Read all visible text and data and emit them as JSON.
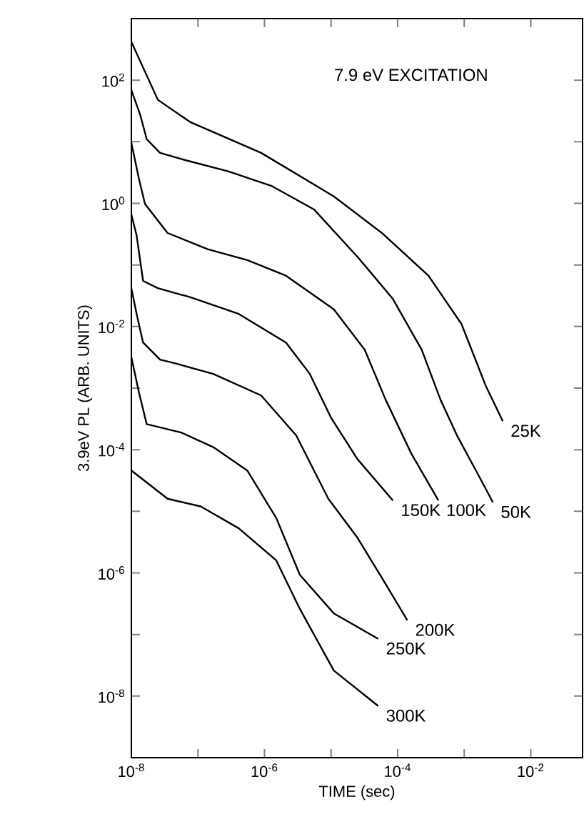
{
  "chart_data": {
    "type": "line",
    "title": "7.9 eV EXCITATION",
    "xlabel": "TIME (sec)",
    "ylabel": "3.9eV PL (ARB. UNITS)",
    "log": "xy",
    "grid": false,
    "marker": "none",
    "line_style": "solid",
    "xlim": [
      1e-08,
      0.06
    ],
    "ylim": [
      1e-09,
      1000
    ],
    "xticks": [
      {
        "value": 1e-08,
        "label": "10$^{-8}$"
      },
      {
        "value": 1e-07,
        "label": null
      },
      {
        "value": 1e-06,
        "label": "10$^{-6}$"
      },
      {
        "value": 1e-05,
        "label": null
      },
      {
        "value": 0.0001,
        "label": "10$^{-4}$"
      },
      {
        "value": 0.001,
        "label": null
      },
      {
        "value": 0.01,
        "label": "10$^{-2}$"
      }
    ],
    "yticks": [
      {
        "value": 1e-08,
        "label": "10$^{-8}$"
      },
      {
        "value": 1e-07,
        "label": null
      },
      {
        "value": 1e-06,
        "label": "10$^{-6}$"
      },
      {
        "value": 1e-05,
        "label": null
      },
      {
        "value": 0.0001,
        "label": "10$^{-4}$"
      },
      {
        "value": 0.001,
        "label": null
      },
      {
        "value": 0.01,
        "label": "10$^{-2}$"
      },
      {
        "value": 0.1,
        "label": null
      },
      {
        "value": 1,
        "label": "10$^{0}$"
      },
      {
        "value": 10,
        "label": null
      },
      {
        "value": 100,
        "label": "10$^{2}$"
      }
    ],
    "series": [
      {
        "name": "25K",
        "color": "#000000",
        "x": [
          1e-08,
          2.5e-08,
          7.6e-08,
          8.9e-07,
          1.1e-05,
          5.8e-05,
          0.00029,
          0.00091,
          0.0021,
          0.0038
        ],
        "values": [
          420,
          48,
          21,
          6.6,
          1.3,
          0.33,
          0.067,
          0.011,
          0.0011,
          0.00029
        ]
      },
      {
        "name": "50K",
        "color": "#000000",
        "x": [
          1e-08,
          1.35e-08,
          1.7e-08,
          2.7e-08,
          6.6e-08,
          2.9e-07,
          1.3e-06,
          5.6e-06,
          2.5e-05,
          8.5e-05,
          0.00023,
          0.00044,
          0.00078,
          0.0015,
          0.0027
        ],
        "values": [
          69,
          28,
          11,
          6.6,
          5.0,
          3.3,
          1.9,
          0.79,
          0.135,
          0.028,
          0.0042,
          0.00065,
          0.00017,
          4.6e-05,
          1.4e-05
        ]
      },
      {
        "name": "100K",
        "color": "#000000",
        "x": [
          1e-08,
          1.3e-08,
          1.6e-08,
          3.5e-08,
          1.4e-07,
          5.5e-07,
          2.1e-06,
          1.1e-05,
          3.2e-05,
          6.6e-05,
          0.00016,
          0.00041
        ],
        "values": [
          9.6,
          2.5,
          0.98,
          0.33,
          0.18,
          0.12,
          0.067,
          0.019,
          0.0042,
          0.00065,
          8.7e-05,
          1.5e-05
        ]
      },
      {
        "name": "150K",
        "color": "#000000",
        "x": [
          1e-08,
          1.2e-08,
          1.5e-08,
          2.5e-08,
          7.6e-08,
          4.1e-07,
          2.1e-06,
          4.8e-06,
          1e-05,
          2.5e-05,
          8.5e-05
        ],
        "values": [
          0.66,
          0.3,
          0.055,
          0.042,
          0.03,
          0.016,
          0.0055,
          0.0017,
          0.00033,
          7e-05,
          1.5e-05
        ]
      },
      {
        "name": "200K",
        "color": "#000000",
        "x": [
          1e-08,
          1.2e-08,
          1.5e-08,
          2.7e-08,
          4.7e-08,
          1.7e-07,
          8.9e-07,
          3e-06,
          9.1e-06,
          2.5e-05,
          5.8e-05,
          0.00014
        ],
        "values": [
          0.042,
          0.016,
          0.0055,
          0.0029,
          0.0025,
          0.0017,
          0.00076,
          0.00017,
          1.6e-05,
          3.7e-06,
          8.3e-07,
          1.7e-07
        ]
      },
      {
        "name": "250K",
        "color": "#000000",
        "x": [
          1e-08,
          1.3e-08,
          1.7e-08,
          5.6e-08,
          1.7e-07,
          5.5e-07,
          1.5e-06,
          3.4e-06,
          1.1e-05,
          5.1e-05
        ],
        "values": [
          0.0032,
          0.00085,
          0.00026,
          0.00019,
          0.00011,
          4.6e-05,
          7.8e-06,
          9.3e-07,
          2.2e-07,
          8.5e-08
        ]
      },
      {
        "name": "300K",
        "color": "#000000",
        "x": [
          1e-08,
          3.5e-08,
          1.1e-07,
          4.1e-07,
          1.5e-06,
          3.4e-06,
          1.1e-05,
          5.1e-05
        ],
        "values": [
          4.6e-05,
          1.6e-05,
          1.2e-05,
          5.3e-06,
          1.6e-06,
          2.6e-07,
          2.6e-08,
          6.9e-09
        ]
      }
    ]
  }
}
